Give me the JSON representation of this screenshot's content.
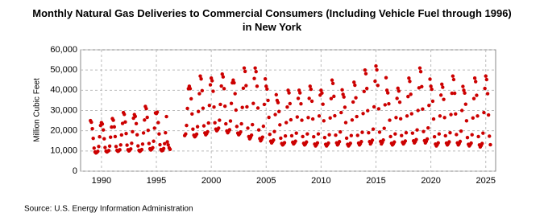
{
  "chart_data": {
    "type": "scatter",
    "title": "Monthly Natural Gas Deliveries to Commercial Consumers (Including Vehicle Fuel through 1996) in New York",
    "ylabel": "Million Cubic Feet",
    "source": "Source: U.S. Energy Information Administration",
    "color": "#cc0000",
    "grid": true,
    "xlim": [
      1988.1,
      2025.9
    ],
    "xticks": [
      1990,
      1995,
      2000,
      2005,
      2010,
      2015,
      2020,
      2025
    ],
    "ylim": [
      0,
      60000
    ],
    "yticks": [
      {
        "value": 0,
        "label": "0"
      },
      {
        "value": 10000,
        "label": "10,000"
      },
      {
        "value": 20000,
        "label": "20,000"
      },
      {
        "value": 30000,
        "label": "30,000"
      },
      {
        "value": 40000,
        "label": "40,000"
      },
      {
        "value": 50000,
        "label": "50,000"
      },
      {
        "value": 60000,
        "label": "60,000"
      }
    ],
    "x": [
      1989.0,
      1989.08,
      1989.17,
      1989.25,
      1989.33,
      1989.42,
      1989.5,
      1989.58,
      1989.67,
      1989.75,
      1989.83,
      1989.92,
      1990.0,
      1990.08,
      1990.17,
      1990.25,
      1990.33,
      1990.42,
      1990.5,
      1990.58,
      1990.67,
      1990.75,
      1990.83,
      1990.92,
      1991.0,
      1991.08,
      1991.17,
      1991.25,
      1991.33,
      1991.42,
      1991.5,
      1991.58,
      1991.67,
      1991.75,
      1991.83,
      1991.92,
      1992.0,
      1992.08,
      1992.17,
      1992.25,
      1992.33,
      1992.42,
      1992.5,
      1992.58,
      1992.67,
      1992.75,
      1992.83,
      1992.92,
      1993.0,
      1993.08,
      1993.17,
      1993.25,
      1993.33,
      1993.42,
      1993.5,
      1993.58,
      1993.67,
      1993.75,
      1993.83,
      1993.92,
      1994.0,
      1994.08,
      1994.17,
      1994.25,
      1994.33,
      1994.42,
      1994.5,
      1994.58,
      1994.67,
      1994.75,
      1994.83,
      1994.92,
      1995.0,
      1995.08,
      1995.17,
      1995.25,
      1995.33,
      1995.42,
      1995.5,
      1995.58,
      1995.67,
      1995.75,
      1995.83,
      1995.92,
      1996.0,
      1996.08,
      1996.17,
      1996.25,
      1997.58,
      1997.67,
      1997.75,
      1997.83,
      1997.92,
      1998.0,
      1998.08,
      1998.17,
      1998.25,
      1998.33,
      1998.42,
      1998.5,
      1998.58,
      1998.67,
      1998.75,
      1998.83,
      1998.92,
      1999.0,
      1999.08,
      1999.17,
      1999.25,
      1999.33,
      1999.42,
      1999.5,
      1999.58,
      1999.67,
      1999.75,
      1999.83,
      1999.92,
      2000.0,
      2000.08,
      2000.17,
      2000.25,
      2000.33,
      2000.42,
      2000.5,
      2000.58,
      2000.67,
      2000.75,
      2000.83,
      2000.92,
      2001.0,
      2001.08,
      2001.17,
      2001.25,
      2001.33,
      2001.42,
      2001.5,
      2001.58,
      2001.67,
      2001.75,
      2001.83,
      2001.92,
      2002.0,
      2002.08,
      2002.17,
      2002.25,
      2002.33,
      2002.42,
      2002.5,
      2002.58,
      2002.67,
      2002.75,
      2002.83,
      2002.92,
      2003.0,
      2003.08,
      2003.17,
      2003.25,
      2003.33,
      2003.42,
      2003.5,
      2003.58,
      2003.67,
      2003.75,
      2003.83,
      2003.92,
      2004.0,
      2004.08,
      2004.17,
      2004.25,
      2004.33,
      2004.42,
      2004.5,
      2004.58,
      2004.67,
      2004.75,
      2004.83,
      2004.92,
      2005.0,
      2005.08,
      2005.17,
      2005.25,
      2005.33,
      2005.42,
      2005.5,
      2005.58,
      2005.67,
      2005.75,
      2005.83,
      2005.92,
      2006.0,
      2006.08,
      2006.17,
      2006.25,
      2006.33,
      2006.42,
      2006.5,
      2006.58,
      2006.67,
      2006.75,
      2006.83,
      2006.92,
      2007.0,
      2007.08,
      2007.17,
      2007.25,
      2007.33,
      2007.42,
      2007.5,
      2007.58,
      2007.67,
      2007.75,
      2007.83,
      2007.92,
      2008.0,
      2008.08,
      2008.17,
      2008.25,
      2008.33,
      2008.42,
      2008.5,
      2008.58,
      2008.67,
      2008.75,
      2008.83,
      2008.92,
      2009.0,
      2009.08,
      2009.17,
      2009.25,
      2009.33,
      2009.42,
      2009.5,
      2009.58,
      2009.67,
      2009.75,
      2009.83,
      2009.92,
      2010.0,
      2010.08,
      2010.17,
      2010.25,
      2010.33,
      2010.42,
      2010.5,
      2010.58,
      2010.67,
      2010.75,
      2010.83,
      2010.92,
      2011.0,
      2011.08,
      2011.17,
      2011.25,
      2011.33,
      2011.42,
      2011.5,
      2011.58,
      2011.67,
      2011.75,
      2011.83,
      2011.92,
      2012.0,
      2012.08,
      2012.17,
      2012.25,
      2012.33,
      2012.42,
      2012.5,
      2012.58,
      2012.67,
      2012.75,
      2012.83,
      2012.92,
      2013.0,
      2013.08,
      2013.17,
      2013.25,
      2013.33,
      2013.42,
      2013.5,
      2013.58,
      2013.67,
      2013.75,
      2013.83,
      2013.92,
      2014.0,
      2014.08,
      2014.17,
      2014.25,
      2014.33,
      2014.42,
      2014.5,
      2014.58,
      2014.67,
      2014.75,
      2014.83,
      2014.92,
      2015.0,
      2015.08,
      2015.17,
      2015.25,
      2015.33,
      2015.42,
      2015.5,
      2015.58,
      2015.67,
      2015.75,
      2015.83,
      2015.92,
      2016.0,
      2016.08,
      2016.17,
      2016.25,
      2016.33,
      2016.42,
      2016.5,
      2016.58,
      2016.67,
      2016.75,
      2016.83,
      2016.92,
      2017.0,
      2017.08,
      2017.17,
      2017.25,
      2017.33,
      2017.42,
      2017.5,
      2017.58,
      2017.67,
      2017.75,
      2017.83,
      2017.92,
      2018.0,
      2018.08,
      2018.17,
      2018.25,
      2018.33,
      2018.42,
      2018.5,
      2018.58,
      2018.67,
      2018.75,
      2018.83,
      2018.92,
      2019.0,
      2019.08,
      2019.17,
      2019.25,
      2019.33,
      2019.42,
      2019.5,
      2019.58,
      2019.67,
      2019.75,
      2019.83,
      2019.92,
      2020.0,
      2020.08,
      2020.17,
      2020.25,
      2020.33,
      2020.42,
      2020.5,
      2020.58,
      2020.67,
      2020.75,
      2020.83,
      2020.92,
      2021.0,
      2021.08,
      2021.17,
      2021.25,
      2021.33,
      2021.42,
      2021.5,
      2021.58,
      2021.67,
      2021.75,
      2021.83,
      2021.92,
      2022.0,
      2022.08,
      2022.17,
      2022.25,
      2022.33,
      2022.42,
      2022.5,
      2022.58,
      2022.67,
      2022.75,
      2022.83,
      2022.92,
      2023.0,
      2023.08,
      2023.17,
      2023.25,
      2023.33,
      2023.42,
      2023.5,
      2023.58,
      2023.67,
      2023.75,
      2023.83,
      2023.92,
      2024.0,
      2024.08,
      2024.17,
      2024.25,
      2024.33,
      2024.42,
      2024.5,
      2024.58,
      2024.67,
      2024.75,
      2024.83,
      2024.92,
      2025.0,
      2025.08,
      2025.17,
      2025.25,
      2025.33,
      2025.42
    ],
    "values": [
      25000,
      24200,
      21000,
      16200,
      11400,
      9500,
      9000,
      9300,
      9800,
      12200,
      17000,
      22600,
      24000,
      23300,
      20400,
      16000,
      11700,
      9900,
      9500,
      9800,
      10200,
      12400,
      16800,
      21800,
      26000,
      25200,
      21900,
      17100,
      12200,
      10300,
      9800,
      10100,
      10600,
      13000,
      17900,
      23600,
      29000,
      28100,
      24300,
      18600,
      12900,
      10600,
      10000,
      10400,
      11000,
      13800,
      19500,
      26200,
      28000,
      27100,
      23500,
      18000,
      12500,
      10300,
      9800,
      10200,
      10700,
      13400,
      18900,
      25300,
      32000,
      30900,
      26600,
      20200,
      13700,
      11100,
      10500,
      10900,
      11600,
      14800,
      21300,
      28800,
      28500,
      29200,
      24000,
      18400,
      13100,
      10700,
      10100,
      10300,
      11200,
      13600,
      19000,
      27000,
      14500,
      13000,
      11500,
      10800,
      17600,
      18400,
      22600,
      31000,
      40800,
      42000,
      40800,
      35800,
      28300,
      20800,
      17800,
      17000,
      17500,
      18300,
      22000,
      29500,
      38300,
      47000,
      45600,
      39800,
      31100,
      22400,
      18900,
      18000,
      18600,
      19500,
      23800,
      32500,
      42700,
      46000,
      44700,
      39500,
      31700,
      23900,
      20800,
      20000,
      20500,
      21300,
      25200,
      33000,
      42100,
      48000,
      46600,
      40800,
      32100,
      23400,
      19900,
      19000,
      19600,
      20500,
      24800,
      33500,
      43700,
      45000,
      43700,
      38300,
      30200,
      22100,
      18800,
      18000,
      18500,
      19400,
      23400,
      31500,
      41000,
      51000,
      49300,
      42300,
      31800,
      21300,
      17100,
      16000,
      16700,
      17800,
      23000,
      33500,
      45800,
      51000,
      49200,
      42000,
      31200,
      20400,
      16100,
      15000,
      15700,
      16800,
      22200,
      33000,
      45600,
      42000,
      40600,
      35000,
      26600,
      18200,
      14800,
      14000,
      14600,
      15400,
      19600,
      28000,
      37800,
      35000,
      33900,
      29500,
      22900,
      16300,
      13700,
      13000,
      13400,
      14100,
      17400,
      24000,
      31700,
      40000,
      38700,
      33400,
      25400,
      17500,
      14300,
      13500,
      14000,
      14800,
      18800,
      26800,
      36000,
      40000,
      38700,
      33300,
      25200,
      17100,
      13800,
      13000,
      13500,
      14400,
      18400,
      26500,
      36000,
      42000,
      40500,
      34600,
      25800,
      17000,
      13400,
      12500,
      13100,
      14000,
      18400,
      27300,
      37600,
      40000,
      38600,
      33100,
      24900,
      16600,
      13300,
      12500,
      13100,
      13900,
      18000,
      26300,
      35900,
      45000,
      43400,
      37000,
      27400,
      17800,
      14000,
      13000,
      13600,
      14600,
      19400,
      29000,
      40200,
      38000,
      36700,
      31600,
      24000,
      16300,
      13300,
      12500,
      13000,
      13800,
      17600,
      25300,
      34200,
      44000,
      42500,
      36300,
      27000,
      17700,
      13900,
      13000,
      13600,
      14600,
      19200,
      28500,
      39400,
      50000,
      48200,
      40900,
      29900,
      19000,
      14600,
      13500,
      14200,
      15300,
      20800,
      31800,
      44500,
      52000,
      50100,
      42400,
      30800,
      19300,
      14700,
      13500,
      14300,
      15400,
      21200,
      32800,
      46200,
      40000,
      38700,
      33300,
      25200,
      17100,
      13800,
      13000,
      13500,
      14400,
      18400,
      26500,
      36000,
      41000,
      39600,
      34100,
      25900,
      17600,
      14300,
      13500,
      14100,
      14900,
      19000,
      27300,
      36900,
      46000,
      44400,
      38000,
      28400,
      18800,
      15000,
      14000,
      14600,
      15600,
      20400,
      30000,
      41200,
      51000,
      49200,
      41800,
      30700,
      19600,
      15100,
      14000,
      14700,
      15900,
      21400,
      32500,
      45500,
      42000,
      40500,
      34600,
      25800,
      17000,
      13400,
      12500,
      13100,
      14000,
      18400,
      27300,
      37600,
      43000,
      41500,
      35500,
      26500,
      17500,
      13900,
      13000,
      13600,
      14500,
      19000,
      28000,
      38500,
      47000,
      45300,
      38500,
      28300,
      18100,
      14000,
      13000,
      13700,
      14700,
      19800,
      30000,
      41900,
      40000,
      38600,
      33100,
      24900,
      16600,
      13300,
      12500,
      13100,
      13900,
      18000,
      26300,
      35900,
      46000,
      44300,
      37500,
      27300,
      17100,
      13000,
      12000,
      12700,
      13700,
      18800,
      29000,
      40900,
      47000,
      45300,
      38300,
      27800,
      17300,
      13100
    ]
  }
}
